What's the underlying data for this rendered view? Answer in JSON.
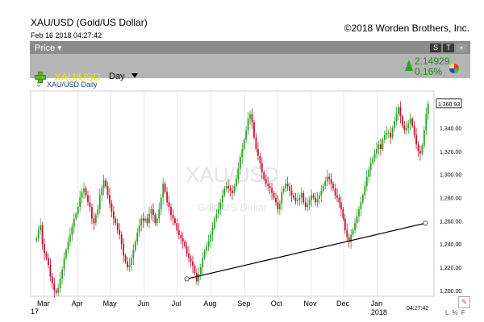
{
  "header": {
    "title": "XAU/USD (Gold/US Dollar)",
    "date": "Feb 16 2018 04:27:42",
    "copyright": "©2018 Worden Brothers, Inc."
  },
  "panel": {
    "price_menu": "Price",
    "symbol": "XAU/USD",
    "period": "Day",
    "change": "2.14929",
    "change_pct": "0.16%",
    "tb_s": "S",
    "tb_t": "T",
    "colors": {
      "up": "#2aa024",
      "down": "#c8102e",
      "symbol": "#e8e800"
    }
  },
  "series_label": "XAU/USD Daily",
  "footer": {
    "time": "04:27:42",
    "icons": "L % F",
    "year_start": "17"
  },
  "chart_data": {
    "type": "candlestick",
    "watermark": "XAU/USD",
    "watermark_sub": "Gold/US Dollar",
    "last_price": "1,360.93",
    "ylim": [
      1195,
      1372
    ],
    "y_ticks": [
      1200,
      1220,
      1240,
      1260,
      1280,
      1300,
      1320,
      1340
    ],
    "y_tick_labels": [
      "1,200.00",
      "1,220.00",
      "1,240.00",
      "1,260.00",
      "1,280.00",
      "1,300.00",
      "1,320.00",
      "1,340.00"
    ],
    "x_month_labels": [
      "Mar",
      "Apr",
      "May",
      "Jun",
      "Jul",
      "Aug",
      "Sep",
      "Oct",
      "Nov",
      "Dec",
      "Jan"
    ],
    "x_year_label": "2018",
    "date_range": [
      "2017-02-21",
      "2018-02-16"
    ],
    "x_month_dates": [
      "2017-03-01",
      "2017-04-01",
      "2017-05-01",
      "2017-06-01",
      "2017-07-01",
      "2017-08-01",
      "2017-09-01",
      "2017-10-01",
      "2017-11-01",
      "2017-12-01",
      "2018-01-01"
    ],
    "trendline": {
      "from": [
        "2017-07-10",
        1210
      ],
      "to": [
        "2018-02-14",
        1258
      ]
    },
    "closes": [
      1245,
      1252,
      1256,
      1240,
      1232,
      1228,
      1222,
      1212,
      1206,
      1200,
      1198,
      1202,
      1210,
      1218,
      1228,
      1235,
      1242,
      1248,
      1255,
      1262,
      1266,
      1272,
      1280,
      1285,
      1288,
      1282,
      1276,
      1272,
      1262,
      1258,
      1265,
      1270,
      1282,
      1288,
      1295,
      1290,
      1282,
      1275,
      1268,
      1262,
      1258,
      1252,
      1248,
      1240,
      1230,
      1225,
      1220,
      1222,
      1228,
      1235,
      1242,
      1250,
      1256,
      1262,
      1260,
      1262,
      1258,
      1266,
      1270,
      1265,
      1258,
      1262,
      1270,
      1280,
      1292,
      1285,
      1276,
      1272,
      1265,
      1262,
      1258,
      1252,
      1248,
      1245,
      1242,
      1238,
      1232,
      1228,
      1225,
      1221,
      1215,
      1208,
      1214,
      1220,
      1228,
      1234,
      1238,
      1242,
      1248,
      1254,
      1262,
      1266,
      1270,
      1276,
      1282,
      1288,
      1290,
      1288,
      1286,
      1284,
      1290,
      1296,
      1305,
      1315,
      1322,
      1330,
      1338,
      1348,
      1352,
      1345,
      1332,
      1322,
      1316,
      1310,
      1302,
      1296,
      1292,
      1290,
      1288,
      1284,
      1280,
      1276,
      1270,
      1275,
      1285,
      1288,
      1292,
      1290,
      1286,
      1282,
      1280,
      1277,
      1278,
      1280,
      1284,
      1276,
      1272,
      1274,
      1278,
      1282,
      1280,
      1276,
      1279,
      1282,
      1286,
      1290,
      1294,
      1298,
      1296,
      1292,
      1288,
      1282,
      1280,
      1276,
      1270,
      1262,
      1252,
      1246,
      1242,
      1248,
      1252,
      1258,
      1264,
      1270,
      1276,
      1282,
      1290,
      1298,
      1304,
      1310,
      1314,
      1318,
      1322,
      1326,
      1322,
      1330,
      1334,
      1336,
      1336,
      1332,
      1340,
      1346,
      1352,
      1358,
      1350,
      1342,
      1338,
      1340,
      1344,
      1348,
      1342,
      1334,
      1326,
      1320,
      1318,
      1325,
      1338,
      1352,
      1361
    ]
  }
}
